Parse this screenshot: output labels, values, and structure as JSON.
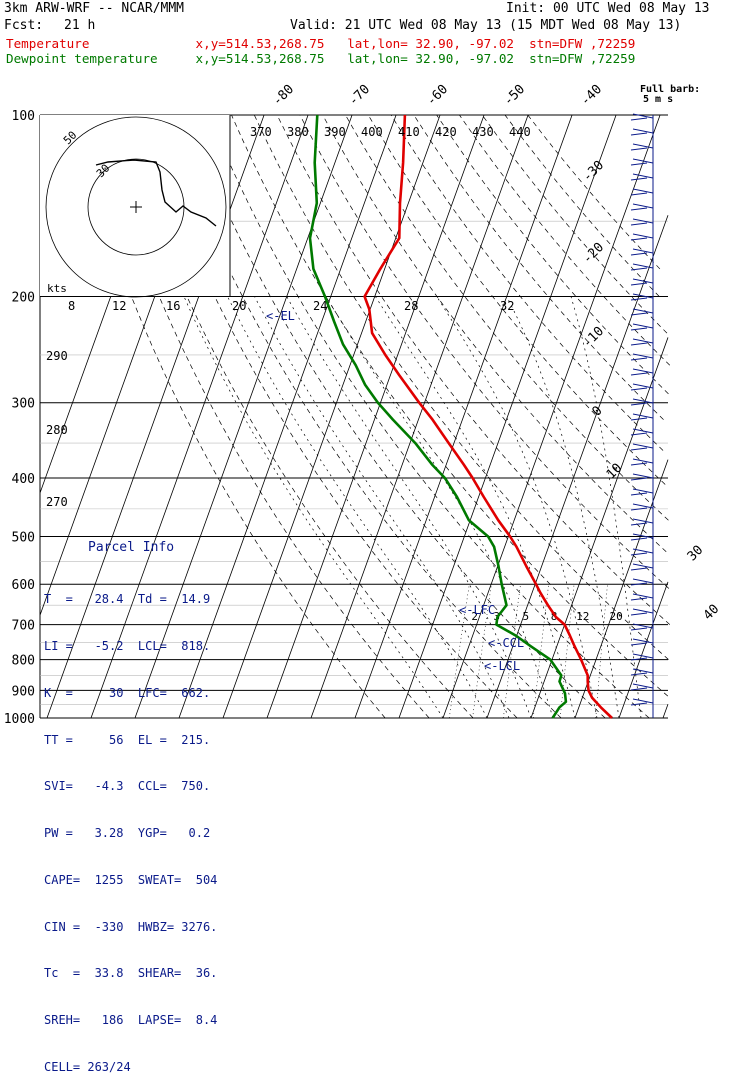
{
  "header": {
    "model": "3km ARW-WRF -- NCAR/MMM",
    "init": "Init: 00 UTC Wed 08 May 13",
    "fcst_label": "Fcst:",
    "fcst_value": "21 h",
    "valid": "Valid: 21 UTC Wed 08 May 13 (15 MDT Wed 08 May 13)",
    "temp_line": "Temperature              x,y=514.53,268.75   lat,lon= 32.90, -97.02  stn=DFW ,72259",
    "dew_line": "Dewpoint temperature     x,y=514.53,268.75   lat,lon= 32.90, -97.02  stn=DFW ,72259"
  },
  "wind_barb_header": {
    "line1": "Full barb:",
    "line2": "5 m s"
  },
  "annotations": {
    "el": "<-EL",
    "lfc": "<-LFC",
    "ccl": "<-CCL",
    "lcl": "<-LCL"
  },
  "hodograph": {
    "kts_label": "kts",
    "ring_labels": [
      "50",
      "30"
    ],
    "speed_ticks": [
      "8",
      "12",
      "16",
      "20",
      "24",
      "28",
      "32"
    ]
  },
  "parcel_info": {
    "title": "Parcel Info",
    "rows": [
      "T  =   28.4  Td =  14.9",
      "LI =   -5.2  LCL=  818.",
      "K  =     30  LFC=  662.",
      "TT =     56  EL =  215.",
      "SVI=   -4.3  CCL=  750.",
      "PW =   3.28  YGP=   0.2",
      "CAPE=  1255  SWEAT=  504",
      "CIN =  -330  HWBZ= 3276.",
      "Tc  =  33.8  SHEAR=  36.",
      "SREH=   186  LAPSE=  8.4",
      "CELL= 263/24"
    ]
  },
  "colors": {
    "temperature": "#e00000",
    "dewpoint": "#007a00",
    "text": "#000000",
    "annotation": "#0a1a8a"
  },
  "chart_data": {
    "type": "line",
    "title": "3km ARW-WRF -- NCAR/MMM",
    "pressure_ticks": [
      100,
      200,
      300,
      400,
      500,
      600,
      700,
      800,
      900,
      1000
    ],
    "top_isotherm_labels": [
      "-80",
      "-70",
      "-60",
      "-50",
      "-40"
    ],
    "right_isotherm_labels": [
      "-30",
      "-20",
      "-10",
      "0",
      "10",
      "30",
      "40"
    ],
    "theta_labels": [
      "370",
      "380",
      "390",
      "400",
      "410",
      "420",
      "430",
      "440"
    ],
    "left_theta_labels": [
      "290",
      "280",
      "270"
    ],
    "mixing_ratio_labels": [
      "2",
      "3",
      "5",
      "8",
      "12",
      "20"
    ],
    "series": [
      {
        "name": "Temperature",
        "color": "#e00000",
        "pressure": [
          1000,
          960,
          925,
          900,
          870,
          850,
          800,
          760,
          730,
          700,
          680,
          650,
          620,
          600,
          560,
          520,
          500,
          470,
          430,
          400,
          380,
          350,
          320,
          300,
          270,
          250,
          230,
          210,
          200,
          180,
          160,
          140,
          120,
          100
        ],
        "temperature": [
          28.4,
          25.0,
          22.2,
          20.8,
          19.9,
          19.4,
          16.6,
          14.0,
          12.1,
          10.0,
          7.4,
          4.6,
          1.9,
          0.2,
          -3.5,
          -7.3,
          -9.6,
          -13.6,
          -18.8,
          -22.9,
          -26.0,
          -31.2,
          -36.8,
          -41.2,
          -48.0,
          -52.8,
          -57.6,
          -60.2,
          -62.3,
          -61.0,
          -59.2,
          -61.9,
          -64.5,
          -68.0
        ]
      },
      {
        "name": "Dewpoint temperature",
        "color": "#007a00",
        "pressure": [
          1000,
          960,
          940,
          910,
          870,
          850,
          800,
          760,
          730,
          700,
          680,
          650,
          600,
          560,
          520,
          500,
          470,
          430,
          400,
          380,
          350,
          320,
          300,
          280,
          260,
          240,
          220,
          200,
          180,
          160,
          140,
          120,
          100
        ],
        "dewpoint": [
          14.9,
          15.6,
          16.6,
          15.7,
          13.5,
          13.4,
          9.6,
          4.0,
          -0.2,
          -5.5,
          -5.9,
          -4.8,
          -7.6,
          -9.8,
          -12.4,
          -14.6,
          -20.3,
          -24.9,
          -29.2,
          -33.2,
          -38.8,
          -45.8,
          -50.6,
          -55.0,
          -58.7,
          -63.3,
          -67.2,
          -71.3,
          -76.2,
          -79.5,
          -80.8,
          -84.6,
          -87.9
        ]
      }
    ]
  }
}
